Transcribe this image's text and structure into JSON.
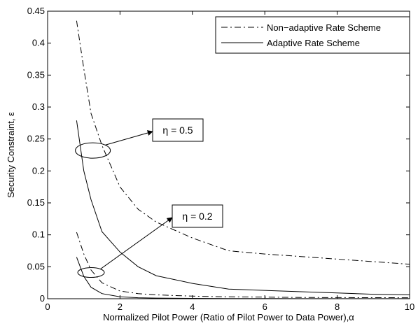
{
  "chart_data": {
    "type": "line",
    "xlabel": "Normalized Pilot Power (Ratio of Pilot Power to Data Power),α",
    "ylabel": "Security Constraint, ε",
    "xlim": [
      0,
      10
    ],
    "ylim": [
      0,
      0.45
    ],
    "xticks": [
      "0",
      "2",
      "4",
      "6",
      "8",
      "10"
    ],
    "yticks": [
      "0",
      "0.05",
      "0.1",
      "0.15",
      "0.2",
      "0.25",
      "0.3",
      "0.35",
      "0.4",
      "0.45"
    ],
    "grid": false,
    "legend_position": "top-right",
    "series": [
      {
        "name": "Non−adaptive Rate Scheme",
        "style": "dashdot",
        "group": "η = 0.5",
        "x": [
          0.8,
          1.0,
          1.2,
          1.5,
          2.0,
          2.5,
          3.0,
          4.0,
          5.0,
          6.0,
          7.0,
          8.0,
          9.0,
          10.0
        ],
        "y": [
          0.435,
          0.36,
          0.29,
          0.24,
          0.175,
          0.14,
          0.12,
          0.095,
          0.075,
          0.07,
          0.066,
          0.062,
          0.058,
          0.054
        ]
      },
      {
        "name": "Adaptive Rate Scheme",
        "style": "solid",
        "group": "η = 0.5",
        "x": [
          0.8,
          1.0,
          1.2,
          1.5,
          2.0,
          2.5,
          3.0,
          4.0,
          5.0,
          6.0,
          7.0,
          8.0,
          9.0,
          10.0
        ],
        "y": [
          0.279,
          0.2,
          0.155,
          0.105,
          0.073,
          0.05,
          0.036,
          0.024,
          0.015,
          0.013,
          0.011,
          0.009,
          0.007,
          0.006
        ]
      },
      {
        "name": "Non−adaptive Rate Scheme",
        "style": "dashdot",
        "group": "η = 0.2",
        "x": [
          0.8,
          1.0,
          1.2,
          1.5,
          2.0,
          2.5,
          3.0,
          4.0,
          5.0,
          6.0,
          7.0,
          8.0,
          9.0,
          10.0
        ],
        "y": [
          0.104,
          0.07,
          0.045,
          0.025,
          0.012,
          0.008,
          0.006,
          0.004,
          0.003,
          0.0025,
          0.002,
          0.0018,
          0.0016,
          0.0015
        ]
      },
      {
        "name": "Adaptive Rate Scheme",
        "style": "solid",
        "group": "η = 0.2",
        "x": [
          0.8,
          1.0,
          1.2,
          1.5,
          2.0,
          2.5,
          3.0,
          4.0,
          5.0,
          6.0,
          7.0,
          8.0,
          9.0,
          10.0
        ],
        "y": [
          0.065,
          0.035,
          0.018,
          0.008,
          0.003,
          0.0015,
          0.001,
          0.0005,
          0.0003,
          0.0002,
          0.0001,
          0.0001,
          0.0001,
          0.0001
        ]
      }
    ],
    "legend": [
      {
        "label": "Non−adaptive Rate Scheme",
        "style": "dashdot"
      },
      {
        "label": "Adaptive Rate Scheme",
        "style": "solid"
      }
    ],
    "annotations": [
      {
        "text": "η = 0.5",
        "ellipse_center": [
          1.25,
          0.232
        ],
        "points_to_x": 2.75
      },
      {
        "text": "η = 0.2",
        "ellipse_center": [
          1.2,
          0.041
        ],
        "points_to_x": 3.25
      }
    ]
  }
}
